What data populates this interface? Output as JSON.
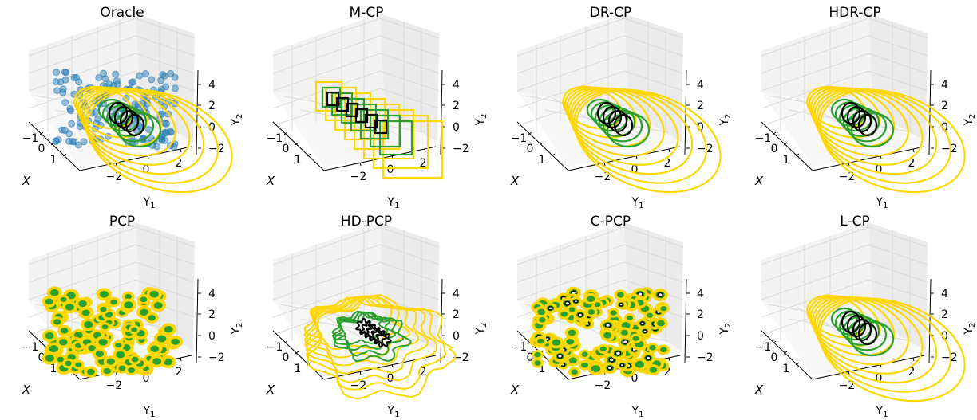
{
  "chart_data": [
    {
      "title": "Oracle",
      "type": "3d-contour",
      "scatter": true,
      "style": "ellipse"
    },
    {
      "title": "M-CP",
      "type": "3d-contour",
      "style": "rect"
    },
    {
      "title": "DR-CP",
      "type": "3d-contour",
      "style": "ellipse"
    },
    {
      "title": "HDR-CP",
      "type": "3d-contour",
      "style": "ellipse"
    },
    {
      "title": "PCP",
      "type": "3d-contour",
      "style": "blobs"
    },
    {
      "title": "HD-PCP",
      "type": "3d-contour",
      "style": "wiggle"
    },
    {
      "title": "C-PCP",
      "type": "3d-contour",
      "style": "blobs2"
    },
    {
      "title": "L-CP",
      "type": "3d-contour",
      "style": "ellipse"
    }
  ],
  "axes": {
    "x_label": "X",
    "y1_label": "Y",
    "y1_sub": "1",
    "y2_label": "Y",
    "y2_sub": "2",
    "x_ticks": [
      "−1",
      "0",
      "1"
    ],
    "y1_ticks": [
      "−2",
      "0",
      "2"
    ],
    "z_ticks": [
      "4",
      "2",
      "0",
      "−2"
    ]
  },
  "colors": {
    "black": "#000000",
    "green": "#2ca02c",
    "yellow": "#ffd700",
    "scatter": "#1f77b4",
    "grid": "#d9d9d9",
    "pane": "#f2f2f2"
  }
}
